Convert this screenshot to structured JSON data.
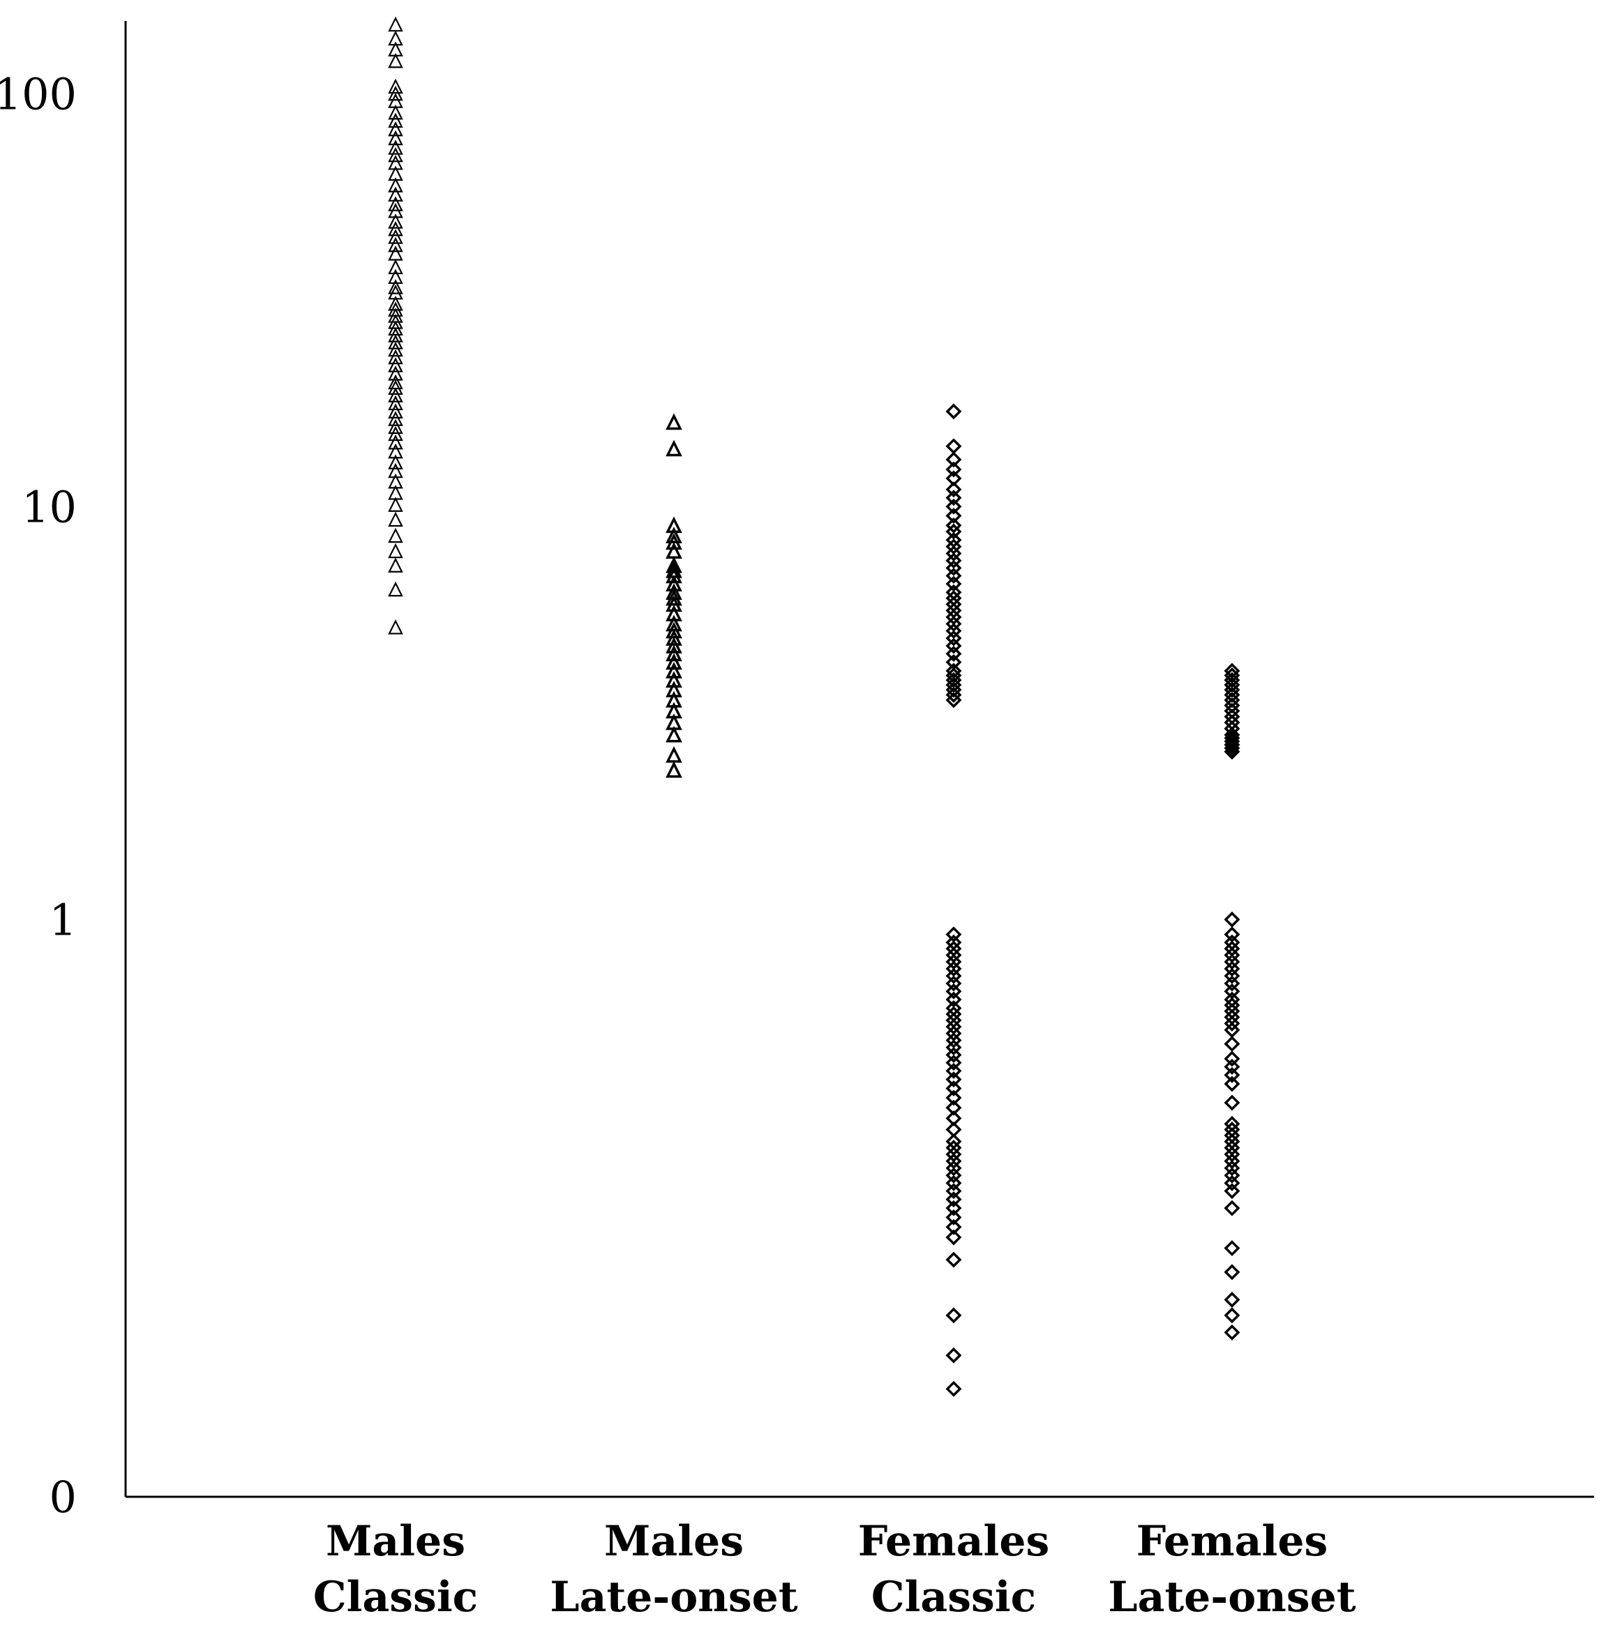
{
  "chart_data": {
    "type": "scatter",
    "title": "",
    "xlabel": "",
    "ylabel": "",
    "y_scale": "log",
    "ylim": [
      0.04,
      150
    ],
    "y_ticks": [
      {
        "value": 100,
        "label": "100"
      },
      {
        "value": 10,
        "label": "10"
      },
      {
        "value": 1,
        "label": "1"
      },
      {
        "value": 0.04,
        "label": "0"
      }
    ],
    "grid": false,
    "legend": "none",
    "categories": [
      {
        "line1": "Males",
        "line2": "Classic"
      },
      {
        "line1": "Males",
        "line2": "Late-onset"
      },
      {
        "line1": "Females",
        "line2": "Classic"
      },
      {
        "line1": "Females",
        "line2": "Late-onset"
      }
    ],
    "series": [
      {
        "category_index": 0,
        "marker": "triangle",
        "values": [
          147,
          136,
          128,
          120,
          104,
          100,
          96,
          90,
          86,
          82,
          78,
          74,
          71,
          68,
          64,
          60,
          57,
          54,
          52,
          49,
          47,
          45,
          43,
          41,
          38,
          36,
          34,
          33,
          31,
          30,
          29,
          28,
          27,
          26,
          25,
          24,
          23,
          22,
          21,
          20,
          19.4,
          18.6,
          17.8,
          17,
          16.3,
          15.6,
          15,
          14.3,
          13.6,
          12.8,
          12.2,
          11.5,
          10.8,
          10.1,
          9.3,
          8.5,
          7.8,
          7.2,
          6.3,
          5.1
        ]
      },
      {
        "category_index": 1,
        "marker": "triangle",
        "values": [
          16,
          13.8,
          9,
          8.5,
          8.2,
          7.8,
          7.2,
          7,
          6.8,
          6.5,
          6.2,
          6,
          5.8,
          5.5,
          5.2,
          5,
          4.8,
          4.6,
          4.4,
          4.2,
          4,
          3.8,
          3.6,
          3.4,
          3.2,
          3,
          2.8,
          2.5,
          2.3
        ]
      },
      {
        "category_index": 2,
        "marker": "diamond",
        "values": [
          17,
          14,
          13,
          12.3,
          11.7,
          11,
          10.5,
          10,
          9.5,
          9,
          8.7,
          8.3,
          8,
          7.7,
          7.4,
          7.1,
          6.8,
          6.5,
          6.2,
          6,
          5.8,
          5.6,
          5.4,
          5.2,
          5,
          4.8,
          4.6,
          4.4,
          4.2,
          4,
          3.9,
          3.8,
          3.7,
          3.6,
          3.5,
          3.4,
          0.92,
          0.88,
          0.85,
          0.82,
          0.79,
          0.76,
          0.73,
          0.7,
          0.67,
          0.64,
          0.61,
          0.59,
          0.57,
          0.55,
          0.53,
          0.51,
          0.49,
          0.47,
          0.45,
          0.43,
          0.41,
          0.39,
          0.37,
          0.35,
          0.33,
          0.31,
          0.29,
          0.28,
          0.27,
          0.26,
          0.25,
          0.24,
          0.23,
          0.22,
          0.21,
          0.2,
          0.19,
          0.18,
          0.17,
          0.15,
          0.11,
          0.088,
          0.073
        ]
      },
      {
        "category_index": 3,
        "marker": "diamond",
        "values": [
          4,
          3.9,
          3.8,
          3.7,
          3.6,
          3.5,
          3.4,
          3.3,
          3.2,
          3.1,
          3,
          2.9,
          2.8,
          2.75,
          2.7,
          2.65,
          2.6,
          2.55,
          1,
          0.92,
          0.88,
          0.85,
          0.82,
          0.79,
          0.76,
          0.73,
          0.7,
          0.67,
          0.64,
          0.62,
          0.6,
          0.58,
          0.56,
          0.54,
          0.5,
          0.46,
          0.44,
          0.42,
          0.4,
          0.36,
          0.32,
          0.31,
          0.3,
          0.29,
          0.28,
          0.27,
          0.26,
          0.25,
          0.24,
          0.23,
          0.22,
          0.2,
          0.16,
          0.14,
          0.12,
          0.11,
          0.1
        ]
      }
    ]
  }
}
